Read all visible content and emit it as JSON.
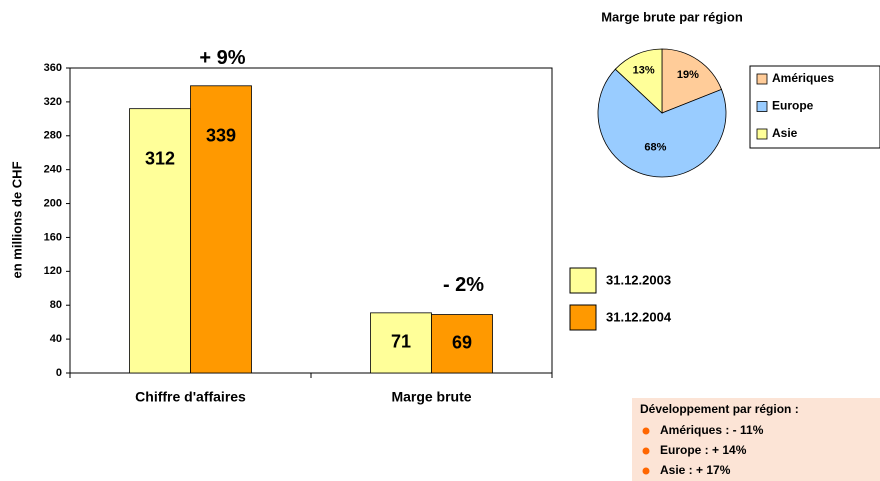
{
  "chart_data": [
    {
      "type": "bar",
      "y_label": "en millions de CHF",
      "categories": [
        "Chiffre d'affaires",
        "Marge brute"
      ],
      "series": [
        {
          "name": "31.12.2003",
          "color": "#ffff99",
          "values": [
            312,
            71
          ]
        },
        {
          "name": "31.12.2004",
          "color": "#ff9900",
          "values": [
            339,
            69
          ]
        }
      ],
      "ylim": [
        0,
        360
      ],
      "yticks": [
        0,
        40,
        80,
        120,
        160,
        200,
        240,
        280,
        320,
        360
      ],
      "annotations": [
        "+ 9%",
        "- 2%"
      ]
    },
    {
      "type": "pie",
      "title": "Marge brute par région",
      "categories": [
        "Amériques",
        "Europe",
        "Asie"
      ],
      "values": [
        19,
        68,
        13
      ],
      "value_labels": [
        "19%",
        "68%",
        "13%"
      ],
      "colors": [
        "#ffcc99",
        "#99ccff",
        "#ffff99"
      ]
    }
  ],
  "notes": {
    "title": "Développement par région :",
    "items": [
      "Amériques : - 11%",
      "Europe : + 14%",
      "Asie : + 17%"
    ]
  }
}
